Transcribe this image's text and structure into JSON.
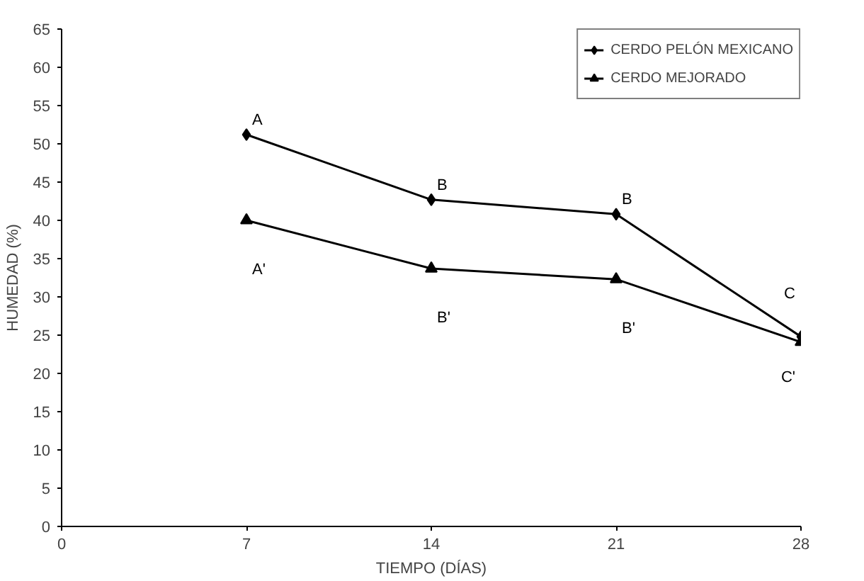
{
  "chart_data": {
    "type": "line",
    "xlabel": "TIEMPO (DÍAS)",
    "ylabel": "HUMEDAD (%)",
    "x": [
      7,
      14,
      21,
      28
    ],
    "series": [
      {
        "name": "CERDO PELÓN MEXICANO",
        "color": "#000000",
        "marker": "diamond",
        "values": [
          51.2,
          42.7,
          40.8,
          24.8
        ]
      },
      {
        "name": "CERDO MEJORADO",
        "color": "#000000",
        "marker": "triangle",
        "values": [
          40,
          33.7,
          32.3,
          24.1
        ]
      }
    ],
    "xlim": [
      0,
      28
    ],
    "xticks": [
      0,
      7,
      14,
      21,
      28
    ],
    "ylim": [
      0,
      65
    ],
    "yticks": [
      0,
      5,
      10,
      15,
      20,
      25,
      30,
      35,
      40,
      45,
      50,
      55,
      60,
      65
    ],
    "grid": false,
    "legend": "top right",
    "line_style": "solid",
    "annotations": [
      {
        "text": "A",
        "x": 7,
        "y": 51.2
      },
      {
        "text": "B",
        "x": 14,
        "y": 42.7
      },
      {
        "text": "B",
        "x": 21,
        "y": 40.8
      },
      {
        "text": "C",
        "x": 28,
        "y": 24.8
      },
      {
        "text": "A'",
        "x": 7,
        "y": 40
      },
      {
        "text": "B'",
        "x": 14,
        "y": 33.7
      },
      {
        "text": "B'",
        "x": 21,
        "y": 32.3
      },
      {
        "text": "C'",
        "x": 28,
        "y": 24.1
      }
    ]
  }
}
